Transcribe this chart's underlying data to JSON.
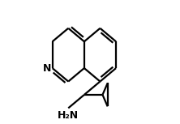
{
  "background_color": "#ffffff",
  "line_color": "#000000",
  "line_width": 1.6,
  "dbo": 0.012,
  "nh2_label": "H₂N",
  "n_label": "N",
  "text_color": "#000000",
  "figsize": [
    2.22,
    1.53
  ],
  "dpi": 100
}
